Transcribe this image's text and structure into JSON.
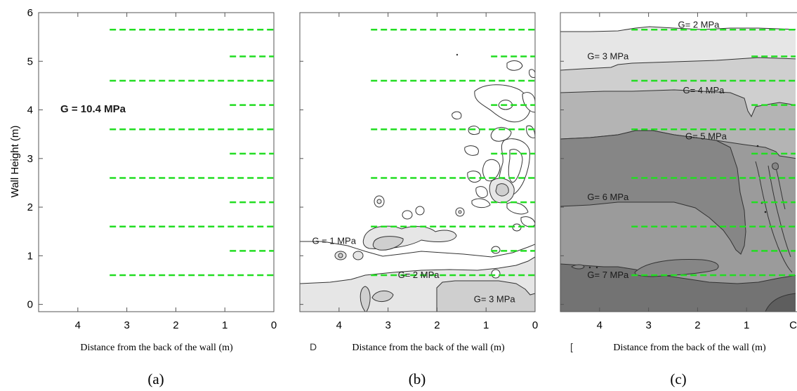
{
  "colors": {
    "reinforcement": "#22dd22",
    "contour_line": "#333333",
    "frame": "#555555",
    "bands": [
      "#ffffff",
      "#e6e6e6",
      "#cfcfcf",
      "#b4b4b4",
      "#9b9b9b",
      "#868686",
      "#737373"
    ]
  },
  "chart_data": [
    {
      "type": "contour",
      "panel_label": "(a)",
      "ylabel": "Wall Height (m)",
      "xlabel": "Distance from the back of the wall (m)",
      "x_reversed": true,
      "xlim": [
        4.8,
        0
      ],
      "ylim": [
        -0.15,
        6
      ],
      "x_ticks": [
        4,
        3,
        2,
        1,
        0
      ],
      "y_ticks": [
        0,
        1,
        2,
        3,
        4,
        5,
        6
      ],
      "reinforcement_layers": [
        {
          "y": 0.6,
          "x_start": 3.35,
          "x_end": 0
        },
        {
          "y": 1.1,
          "x_start": 0.9,
          "x_end": 0
        },
        {
          "y": 1.6,
          "x_start": 3.35,
          "x_end": 0
        },
        {
          "y": 2.1,
          "x_start": 0.9,
          "x_end": 0
        },
        {
          "y": 2.6,
          "x_start": 3.35,
          "x_end": 0
        },
        {
          "y": 3.1,
          "x_start": 0.9,
          "x_end": 0
        },
        {
          "y": 3.6,
          "x_start": 3.35,
          "x_end": 0
        },
        {
          "y": 4.1,
          "x_start": 0.9,
          "x_end": 0
        },
        {
          "y": 4.6,
          "x_start": 3.35,
          "x_end": 0
        },
        {
          "y": 5.1,
          "x_start": 0.9,
          "x_end": 0
        },
        {
          "y": 5.65,
          "x_start": 3.35,
          "x_end": 0
        }
      ],
      "annotations": [
        {
          "text": "G = 10.4 MPa",
          "x": 4.1,
          "y": 4.1
        }
      ]
    },
    {
      "type": "contour",
      "panel_label": "(b)",
      "xlabel": "Distance from the back of the wall (m)",
      "xlabel_prefix": "D",
      "x_reversed": true,
      "xlim": [
        4.8,
        0
      ],
      "ylim": [
        -0.15,
        6
      ],
      "x_ticks": [
        4,
        3,
        2,
        1,
        0
      ],
      "contour_levels": [
        {
          "text": "G = 1 MPa",
          "x": 4.55,
          "y": 1.3
        },
        {
          "text": "G= 2 MPa",
          "x": 2.8,
          "y": 0.6
        },
        {
          "text": "G= 3 MPa",
          "x": 1.25,
          "y": 0.1
        }
      ]
    },
    {
      "type": "contour",
      "panel_label": "(c)",
      "xlabel": "Distance from the back of the wall (m)",
      "xlabel_prefix": "[",
      "x_reversed": true,
      "xlim": [
        4.8,
        0
      ],
      "ylim": [
        -0.15,
        6
      ],
      "x_ticks": [
        4,
        3,
        2,
        1
      ],
      "x_ticks_clipped": [
        "C"
      ],
      "contour_levels": [
        {
          "text": "G= 2 MPa",
          "x": 2.4,
          "y": 5.75
        },
        {
          "text": "G= 3 MPa",
          "x": 4.25,
          "y": 5.1
        },
        {
          "text": "G= 4 MPa",
          "x": 2.3,
          "y": 4.4
        },
        {
          "text": "G= 5 MPa",
          "x": 2.25,
          "y": 3.45
        },
        {
          "text": "G= 6 MPa",
          "x": 4.25,
          "y": 2.2
        },
        {
          "text": "G= 7 MPa",
          "x": 4.25,
          "y": 0.6
        }
      ]
    }
  ]
}
